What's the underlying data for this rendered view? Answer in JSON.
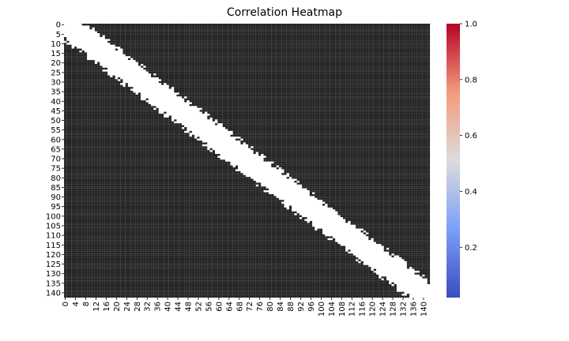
{
  "chart_data": {
    "type": "heatmap",
    "title": "Correlation Heatmap",
    "xlabel": "",
    "ylabel": "",
    "n": 143,
    "x_tick_labels": [
      "0",
      "4",
      "8",
      "12",
      "16",
      "20",
      "24",
      "28",
      "32",
      "36",
      "40",
      "44",
      "48",
      "52",
      "56",
      "60",
      "64",
      "68",
      "72",
      "76",
      "80",
      "84",
      "88",
      "92",
      "96",
      "100",
      "104",
      "108",
      "112",
      "116",
      "120",
      "124",
      "128",
      "132",
      "136",
      "140"
    ],
    "y_tick_labels": [
      "0",
      "5",
      "10",
      "15",
      "20",
      "25",
      "30",
      "35",
      "40",
      "45",
      "50",
      "55",
      "60",
      "65",
      "70",
      "75",
      "80",
      "85",
      "90",
      "95",
      "100",
      "105",
      "110",
      "115",
      "120",
      "125",
      "130",
      "135",
      "140"
    ],
    "colorbar": {
      "colormap": "coolwarm",
      "range": [
        0.02,
        1.0
      ],
      "tick_labels": [
        "0.2",
        "0.4",
        "0.6",
        "0.8",
        "1.0"
      ],
      "low_color": "#3b4cc0",
      "mid_color": "#dddcdc",
      "high_color": "#b40426"
    },
    "cell_annotation_color": "#262626",
    "mostly_high_block_indices": [
      0,
      5,
      10,
      15,
      20,
      25,
      30,
      35,
      40,
      45,
      50,
      55,
      60,
      65,
      70,
      75,
      80,
      85,
      90,
      95,
      100,
      105,
      110,
      115,
      120,
      125,
      130,
      135,
      140
    ],
    "diagonal": 1.0
  }
}
